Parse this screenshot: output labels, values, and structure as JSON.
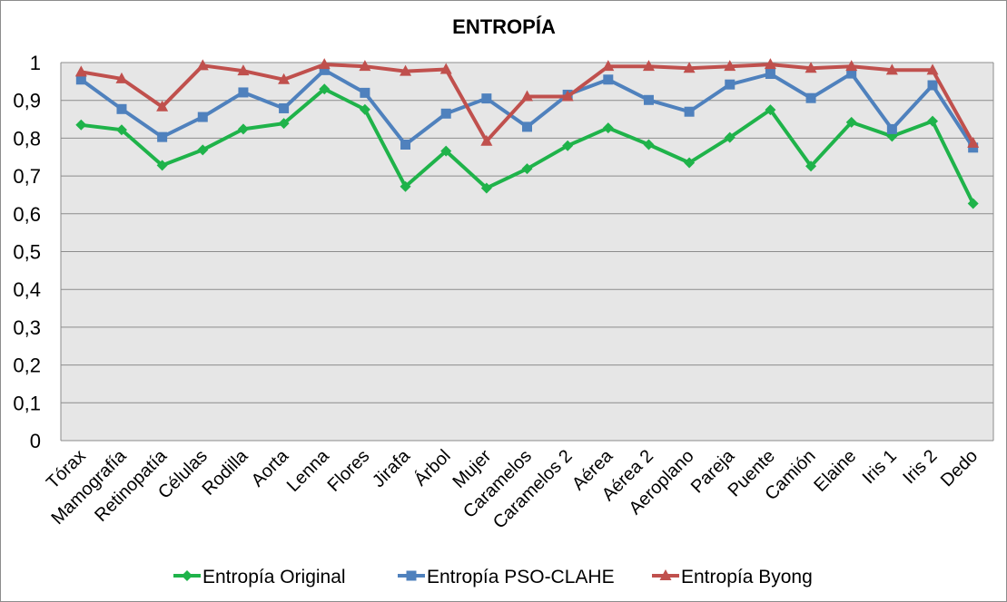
{
  "chart_data": {
    "type": "line",
    "title": "ENTROPÍA",
    "xlabel": "",
    "ylabel": "",
    "ylim": [
      0,
      1
    ],
    "yticks": [
      "0",
      "0,1",
      "0,2",
      "0,3",
      "0,4",
      "0,5",
      "0,6",
      "0,7",
      "0,8",
      "0,9",
      "1"
    ],
    "grid": true,
    "legend_position": "bottom",
    "categories": [
      "Tórax",
      "Mamografía",
      "Retinopatía",
      "Células",
      "Rodilla",
      "Aorta",
      "Lenna",
      "Flores",
      "Jirafa",
      "Árbol",
      "Mujer",
      "Caramelos",
      "Caramelos 2",
      "Aérea",
      "Aérea 2",
      "Aeroplano",
      "Pareja",
      "Puente",
      "Camión",
      "Elaine",
      "Iris 1",
      "Iris 2",
      "Dedo"
    ],
    "series": [
      {
        "name": "Entropía Original",
        "color": "#1fb34a",
        "marker": "diamond",
        "values": [
          0.835,
          0.822,
          0.728,
          0.769,
          0.824,
          0.839,
          0.93,
          0.876,
          0.672,
          0.766,
          0.668,
          0.719,
          0.78,
          0.827,
          0.783,
          0.735,
          0.802,
          0.875,
          0.726,
          0.842,
          0.805,
          0.845,
          0.627
        ]
      },
      {
        "name": "Entropía PSO-CLAHE",
        "color": "#4f81bd",
        "marker": "square",
        "values": [
          0.955,
          0.877,
          0.803,
          0.856,
          0.921,
          0.879,
          0.98,
          0.92,
          0.783,
          0.865,
          0.905,
          0.83,
          0.915,
          0.955,
          0.901,
          0.87,
          0.942,
          0.97,
          0.906,
          0.971,
          0.824,
          0.94,
          0.775
        ]
      },
      {
        "name": "Entropía Byong",
        "color": "#c0504d",
        "marker": "triangle",
        "values": [
          0.975,
          0.957,
          0.883,
          0.992,
          0.978,
          0.955,
          0.995,
          0.99,
          0.977,
          0.982,
          0.792,
          0.91,
          0.91,
          0.99,
          0.99,
          0.985,
          0.99,
          0.995,
          0.985,
          0.99,
          0.98,
          0.98,
          0.787
        ]
      }
    ]
  }
}
